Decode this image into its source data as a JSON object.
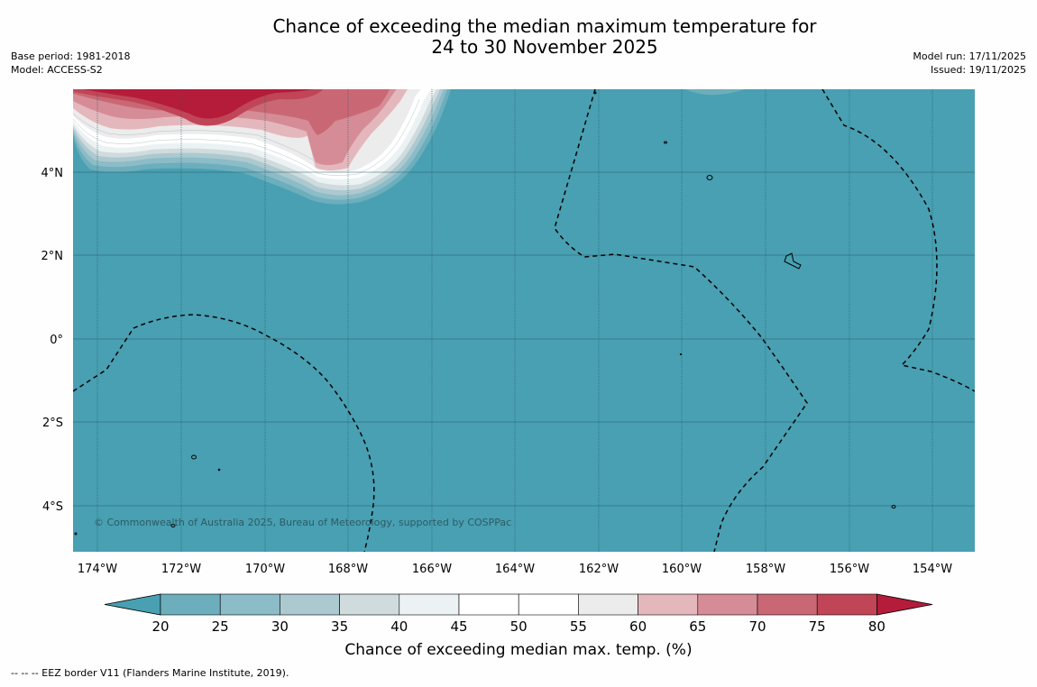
{
  "title": {
    "line1": "Chance of exceeding the median maximum temperature for",
    "line2": "24 to 30 November 2025"
  },
  "meta_left": {
    "base_period": "Base period: 1981-2018",
    "model": "Model: ACCESS-S2"
  },
  "meta_right": {
    "model_run": "Model run: 17/11/2025",
    "issued": "Issued: 19/11/2025"
  },
  "map": {
    "longitude_labels": [
      "174°W",
      "172°W",
      "170°W",
      "168°W",
      "166°W",
      "164°W",
      "162°W",
      "160°W",
      "158°W",
      "156°W",
      "154°W"
    ],
    "latitude_labels": [
      "4°N",
      "2°N",
      "0°",
      "2°S",
      "4°S"
    ],
    "copyright": "© Commonwealth of Australia 2025, Bureau of Meteorology, supported by COSPPac",
    "ocean_color": "#48a0b2"
  },
  "colorbar": {
    "ticks": [
      "20",
      "25",
      "30",
      "35",
      "40",
      "45",
      "50",
      "55",
      "60",
      "65",
      "70",
      "75",
      "80"
    ],
    "label": "Chance of exceeding median max. temp. (%)",
    "colors": [
      "#48a0b2",
      "#6caebc",
      "#8bbcc7",
      "#acc9cf",
      "#cfdbdd",
      "#ecf2f3",
      "#ffffff",
      "#ffffff",
      "#ececec",
      "#e4b7bc",
      "#d58c96",
      "#c96874",
      "#c04657",
      "#b41c3a"
    ]
  },
  "footer": {
    "legend_line": "--  --  -- EEZ border V11 (Flanders Marine Institute, 2019)."
  }
}
